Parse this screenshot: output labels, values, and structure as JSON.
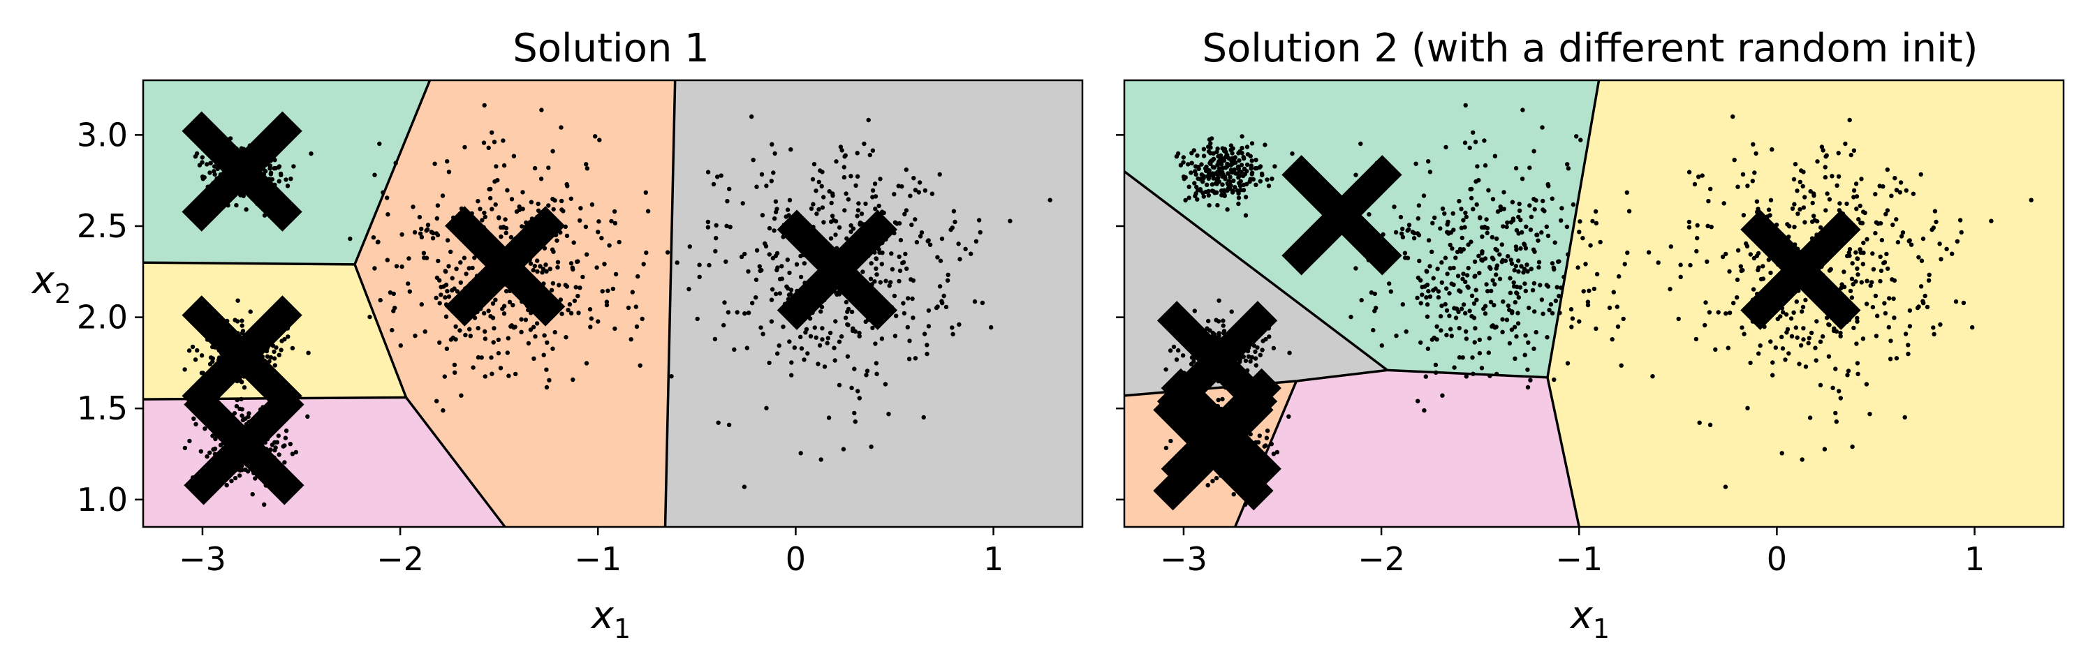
{
  "figure": {
    "background": "#ffffff",
    "point_color": "#000000",
    "boundary_color": "#000000",
    "region_colors": {
      "green": "#b3e2cd",
      "orange": "#fdcdac",
      "gray": "#cccccc",
      "yellow": "#fff2ae",
      "pink": "#f4cae4"
    }
  },
  "chart_data": [
    {
      "type": "scatter",
      "title": "Solution 1",
      "xlabel": "x",
      "xlabel_sub": "1",
      "ylabel": "x",
      "ylabel_sub": "2",
      "xlim": [
        -3.3,
        1.45
      ],
      "ylim": [
        0.85,
        3.3
      ],
      "xticks": [
        -3,
        -2,
        -1,
        0,
        1
      ],
      "xtick_labels": [
        "−3",
        "−2",
        "−1",
        "0",
        "1"
      ],
      "yticks": [
        1.0,
        1.5,
        2.0,
        2.5,
        3.0
      ],
      "ytick_labels": [
        "1.0",
        "1.5",
        "2.0",
        "2.5",
        "3.0"
      ],
      "show_ytick_labels": true,
      "grid": false,
      "legend": "none",
      "centroids": [
        {
          "x": -2.8,
          "y": 2.8
        },
        {
          "x": -2.8,
          "y": 1.79
        },
        {
          "x": -2.79,
          "y": 1.3
        },
        {
          "x": -1.47,
          "y": 2.28
        },
        {
          "x": 0.21,
          "y": 2.26
        }
      ],
      "regions": [
        {
          "color": "green",
          "polygon": [
            [
              -3.3,
              3.3
            ],
            [
              -1.85,
              3.3
            ],
            [
              -2.23,
              2.29
            ],
            [
              -3.3,
              2.3
            ]
          ]
        },
        {
          "color": "yellow",
          "polygon": [
            [
              -3.3,
              2.3
            ],
            [
              -2.23,
              2.29
            ],
            [
              -1.97,
              1.56
            ],
            [
              -3.3,
              1.55
            ]
          ]
        },
        {
          "color": "pink",
          "polygon": [
            [
              -3.3,
              1.55
            ],
            [
              -1.97,
              1.56
            ],
            [
              -1.47,
              0.85
            ],
            [
              -3.3,
              0.85
            ]
          ]
        },
        {
          "color": "orange",
          "polygon": [
            [
              -1.85,
              3.3
            ],
            [
              -0.61,
              3.3
            ],
            [
              -0.66,
              0.85
            ],
            [
              -1.47,
              0.85
            ],
            [
              -1.97,
              1.56
            ],
            [
              -2.23,
              2.29
            ]
          ]
        },
        {
          "color": "gray",
          "polygon": [
            [
              -0.61,
              3.3
            ],
            [
              1.45,
              3.3
            ],
            [
              1.45,
              0.85
            ],
            [
              -0.66,
              0.85
            ]
          ]
        }
      ],
      "boundaries": [
        [
          [
            -3.3,
            2.3
          ],
          [
            -2.23,
            2.29
          ]
        ],
        [
          [
            -3.3,
            1.55
          ],
          [
            -1.97,
            1.56
          ]
        ],
        [
          [
            -2.23,
            2.29
          ],
          [
            -1.85,
            3.3
          ]
        ],
        [
          [
            -2.23,
            2.29
          ],
          [
            -1.97,
            1.56
          ]
        ],
        [
          [
            -1.97,
            1.56
          ],
          [
            -1.47,
            0.85
          ]
        ],
        [
          [
            -0.61,
            3.3
          ],
          [
            -0.66,
            0.85
          ]
        ]
      ]
    },
    {
      "type": "scatter",
      "title": "Solution 2 (with a different random init)",
      "xlabel": "x",
      "xlabel_sub": "1",
      "ylabel": "",
      "ylabel_sub": "",
      "xlim": [
        -3.3,
        1.45
      ],
      "ylim": [
        0.85,
        3.3
      ],
      "xticks": [
        -3,
        -2,
        -1,
        0,
        1
      ],
      "xtick_labels": [
        "−3",
        "−2",
        "−1",
        "0",
        "1"
      ],
      "yticks": [
        1.0,
        1.5,
        2.0,
        2.5,
        3.0
      ],
      "ytick_labels": [],
      "show_ytick_labels": false,
      "grid": false,
      "legend": "none",
      "centroids": [
        {
          "x": -2.2,
          "y": 2.56
        },
        {
          "x": 0.12,
          "y": 2.26
        },
        {
          "x": -2.83,
          "y": 1.76
        },
        {
          "x": -2.81,
          "y": 1.39
        },
        {
          "x": -2.85,
          "y": 1.27
        }
      ],
      "regions": [
        {
          "color": "green",
          "polygon": [
            [
              -3.3,
              2.8
            ],
            [
              -3.3,
              3.3
            ],
            [
              -0.9,
              3.3
            ],
            [
              -1.16,
              1.67
            ],
            [
              -1.97,
              1.71
            ]
          ]
        },
        {
          "color": "gray",
          "polygon": [
            [
              -3.3,
              2.8
            ],
            [
              -1.97,
              1.71
            ],
            [
              -2.43,
              1.65
            ],
            [
              -3.3,
              1.57
            ]
          ]
        },
        {
          "color": "orange",
          "polygon": [
            [
              -3.3,
              1.57
            ],
            [
              -2.43,
              1.65
            ],
            [
              -2.74,
              0.85
            ],
            [
              -3.3,
              0.85
            ]
          ]
        },
        {
          "color": "pink",
          "polygon": [
            [
              -2.43,
              1.65
            ],
            [
              -1.97,
              1.71
            ],
            [
              -1.16,
              1.67
            ],
            [
              -1.0,
              0.85
            ],
            [
              -2.74,
              0.85
            ]
          ]
        },
        {
          "color": "yellow",
          "polygon": [
            [
              -0.9,
              3.3
            ],
            [
              1.45,
              3.3
            ],
            [
              1.45,
              0.85
            ],
            [
              -1.0,
              0.85
            ],
            [
              -1.16,
              1.67
            ]
          ]
        }
      ],
      "boundaries": [
        [
          [
            -3.3,
            2.8
          ],
          [
            -1.97,
            1.71
          ]
        ],
        [
          [
            -1.97,
            1.71
          ],
          [
            -1.16,
            1.67
          ]
        ],
        [
          [
            -0.9,
            3.3
          ],
          [
            -1.16,
            1.67
          ]
        ],
        [
          [
            -1.16,
            1.67
          ],
          [
            -1.0,
            0.85
          ]
        ],
        [
          [
            -1.97,
            1.71
          ],
          [
            -2.43,
            1.65
          ]
        ],
        [
          [
            -3.3,
            1.57
          ],
          [
            -2.43,
            1.65
          ]
        ],
        [
          [
            -2.43,
            1.65
          ],
          [
            -2.74,
            0.85
          ]
        ]
      ]
    }
  ],
  "clusters": [
    {
      "cx": -2.8,
      "cy": 2.8,
      "sx": 0.1,
      "sy": 0.09,
      "n": 240
    },
    {
      "cx": -2.8,
      "cy": 1.8,
      "sx": 0.11,
      "sy": 0.1,
      "n": 250
    },
    {
      "cx": -2.79,
      "cy": 1.3,
      "sx": 0.11,
      "sy": 0.1,
      "n": 250
    },
    {
      "cx": -1.47,
      "cy": 2.28,
      "sx": 0.3,
      "sy": 0.3,
      "n": 420
    },
    {
      "cx": 0.21,
      "cy": 2.26,
      "sx": 0.33,
      "sy": 0.35,
      "n": 430
    }
  ]
}
